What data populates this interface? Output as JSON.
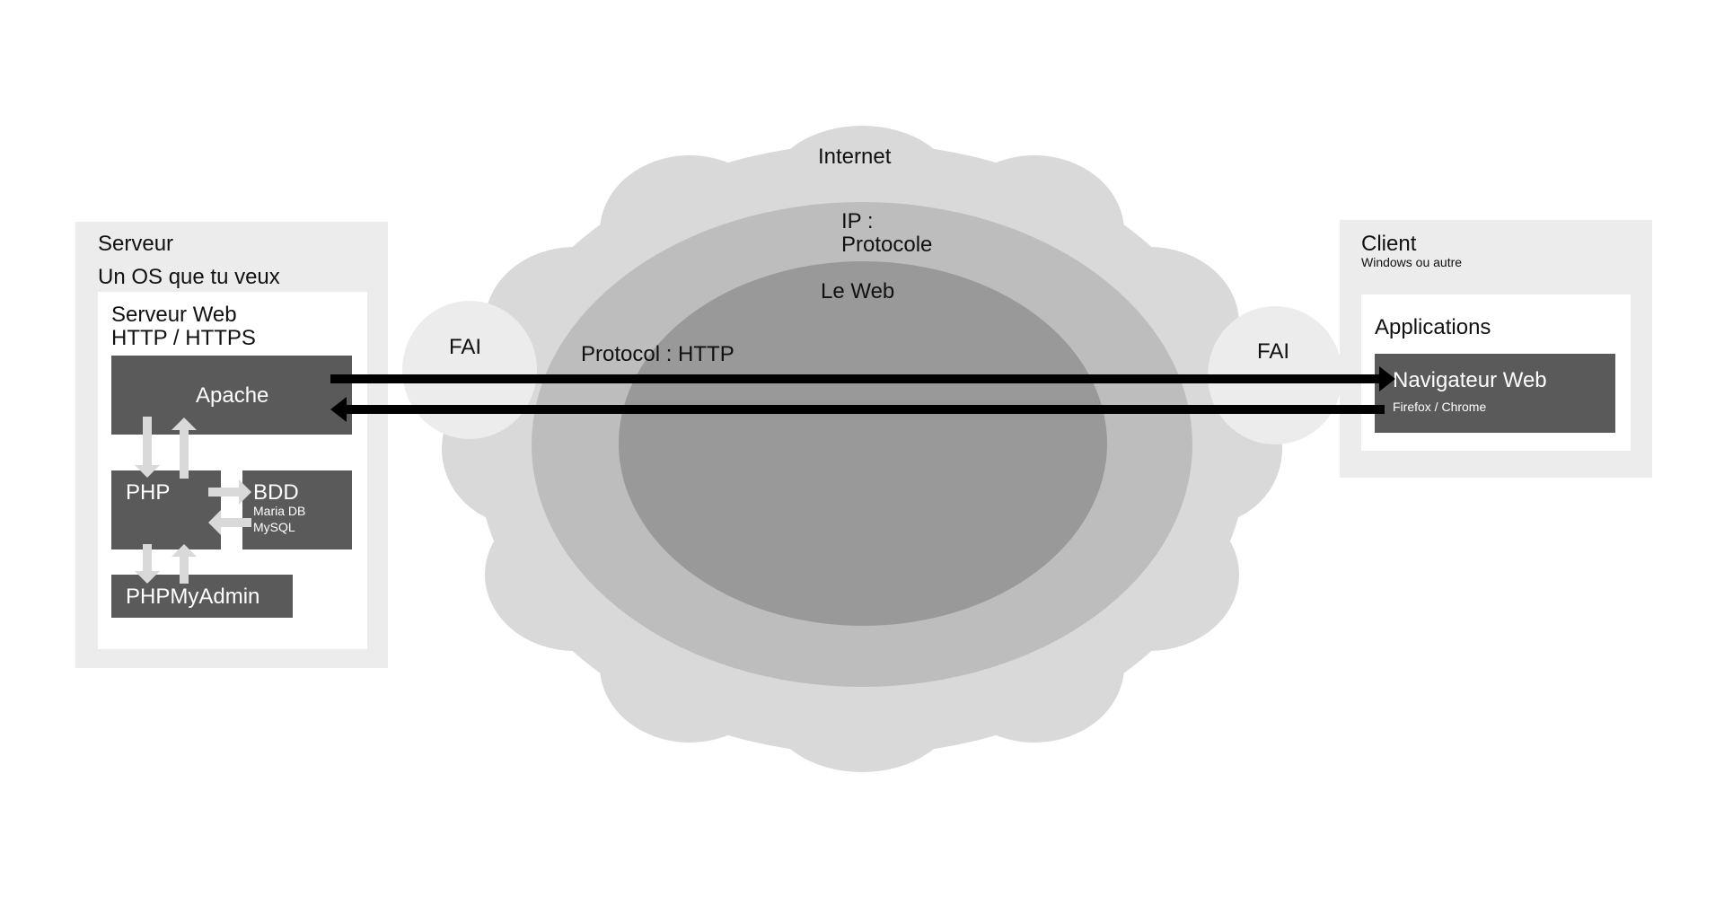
{
  "colors": {
    "background": "#ffffff",
    "panel": "#ececec",
    "panel_inner": "#ffffff",
    "box_dark": "#5a5a5a",
    "cloud": "#d9d9d9",
    "ip_layer": "#bdbdbd",
    "web_layer": "#999999",
    "fai_bubble": "#ececec",
    "arrow_light": "#d9d9d9",
    "arrow_dark": "#000000"
  },
  "internet": {
    "label": "Internet",
    "ip_label_line1": "IP :",
    "ip_label_line2": "Protocole",
    "web_label": "Le Web",
    "protocol_label": "Protocol : HTTP",
    "fai_left": "FAI",
    "fai_right": "FAI"
  },
  "server": {
    "title": "Serveur",
    "os_label": "Un OS que tu veux",
    "webserver_line1": "Serveur Web",
    "webserver_line2": "HTTP / HTTPS",
    "apache": "Apache",
    "php": "PHP",
    "bdd": "BDD",
    "bdd_line1": "Maria DB",
    "bdd_line2": "MySQL",
    "phpmyadmin": "PHPMyAdmin"
  },
  "client": {
    "title": "Client",
    "subtitle": "Windows ou autre",
    "applications": "Applications",
    "browser": "Navigateur Web",
    "browser_sub": "Firefox / Chrome"
  }
}
